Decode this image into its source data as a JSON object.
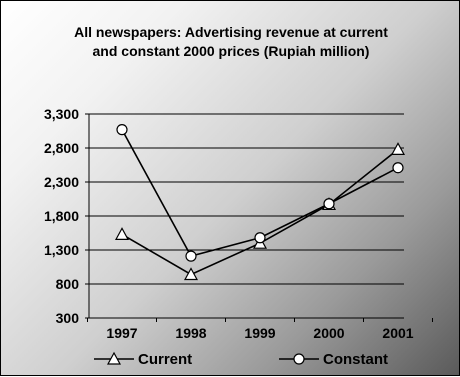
{
  "chart_data": {
    "type": "line",
    "title_lines": [
      "All newspapers: Advertising revenue at current",
      "and constant 2000 prices (Rupiah million)"
    ],
    "categories": [
      "1997",
      "1998",
      "1999",
      "2000",
      "2001"
    ],
    "series": [
      {
        "name": "Current",
        "marker": "triangle",
        "values": [
          1530,
          940,
          1400,
          1970,
          2780
        ]
      },
      {
        "name": "Constant",
        "marker": "circle",
        "values": [
          3070,
          1210,
          1480,
          1980,
          2510
        ]
      }
    ],
    "ylim": [
      300,
      3300
    ],
    "yticks": [
      "3,300",
      "2,800",
      "2,300",
      "1,800",
      "1,300",
      "800",
      "300"
    ],
    "ytick_values": [
      3300,
      2800,
      2300,
      1800,
      1300,
      800,
      300
    ],
    "grid": true,
    "legend_position": "bottom",
    "colors": {
      "line": "#000000",
      "marker_fill": "#ffffff",
      "gridline": "#000000"
    }
  }
}
